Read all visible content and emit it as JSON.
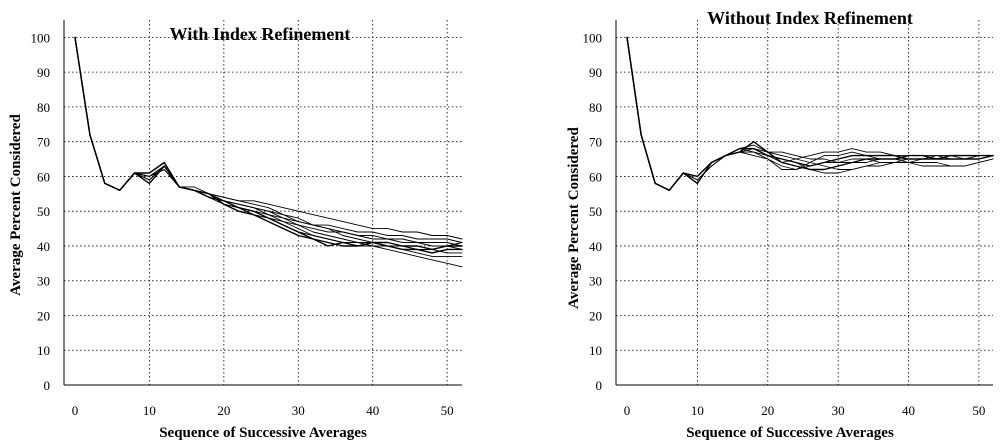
{
  "chart_data": [
    {
      "type": "line",
      "title": "With Index Refinement",
      "xlabel": "Sequence of Successive Averages",
      "ylabel": "Average Percent Considered",
      "xlim": [
        0,
        52
      ],
      "ylim": [
        0,
        105
      ],
      "x_ticks": [
        "0",
        "10",
        "20",
        "30",
        "40",
        "50"
      ],
      "y_ticks": [
        "0",
        "10",
        "20",
        "30",
        "40",
        "50",
        "60",
        "70",
        "80",
        "90",
        "100"
      ],
      "grid": true,
      "x": [
        0,
        2,
        4,
        6,
        8,
        10,
        12,
        14,
        16,
        18,
        20,
        22,
        24,
        26,
        28,
        30,
        32,
        34,
        36,
        38,
        40,
        42,
        44,
        46,
        48,
        50,
        52
      ],
      "series": [
        {
          "values": [
            100,
            72,
            58,
            56,
            61,
            58,
            63,
            57,
            56,
            55,
            52,
            50,
            49,
            47,
            45,
            43,
            42,
            40,
            41,
            40,
            41,
            40,
            39,
            39,
            38,
            39,
            39
          ]
        },
        {
          "values": [
            100,
            72,
            58,
            56,
            61,
            61,
            64,
            57,
            56,
            54,
            53,
            51,
            50,
            48,
            46,
            44,
            42,
            41,
            40,
            40,
            41,
            41,
            40,
            40,
            39,
            40,
            40
          ]
        },
        {
          "values": [
            100,
            72,
            58,
            56,
            61,
            60,
            62,
            57,
            56,
            55,
            52,
            51,
            49,
            48,
            47,
            45,
            43,
            42,
            41,
            40,
            40,
            39,
            38,
            37,
            36,
            35,
            34
          ]
        },
        {
          "values": [
            100,
            72,
            58,
            56,
            61,
            59,
            63,
            57,
            56,
            54,
            53,
            52,
            51,
            50,
            49,
            47,
            46,
            45,
            44,
            43,
            43,
            42,
            42,
            41,
            41,
            41,
            40
          ]
        },
        {
          "values": [
            100,
            72,
            58,
            56,
            61,
            60,
            63,
            57,
            57,
            55,
            54,
            53,
            52,
            51,
            49,
            48,
            46,
            45,
            43,
            42,
            41,
            40,
            40,
            39,
            39,
            40,
            41
          ]
        },
        {
          "values": [
            100,
            72,
            58,
            56,
            61,
            60,
            62,
            57,
            56,
            55,
            53,
            52,
            51,
            49,
            47,
            46,
            44,
            43,
            42,
            41,
            41,
            40,
            39,
            38,
            37,
            37,
            37
          ]
        },
        {
          "values": [
            100,
            72,
            58,
            56,
            61,
            59,
            63,
            57,
            56,
            54,
            52,
            51,
            50,
            49,
            48,
            46,
            45,
            44,
            44,
            43,
            42,
            42,
            41,
            41,
            40,
            40,
            39
          ]
        },
        {
          "values": [
            100,
            72,
            58,
            56,
            61,
            60,
            63,
            57,
            56,
            55,
            54,
            53,
            53,
            52,
            51,
            50,
            49,
            48,
            47,
            46,
            45,
            45,
            44,
            44,
            43,
            43,
            42
          ]
        },
        {
          "values": [
            100,
            72,
            58,
            56,
            61,
            60,
            62,
            57,
            56,
            55,
            53,
            51,
            49,
            48,
            46,
            44,
            43,
            42,
            41,
            41,
            40,
            40,
            40,
            39,
            39,
            38,
            38
          ]
        },
        {
          "values": [
            100,
            72,
            58,
            56,
            61,
            59,
            63,
            57,
            56,
            54,
            53,
            52,
            51,
            50,
            48,
            47,
            46,
            46,
            45,
            44,
            44,
            43,
            43,
            42,
            42,
            42,
            41
          ]
        }
      ]
    },
    {
      "type": "line",
      "title": "Without Index Refinement",
      "xlabel": "Sequence of Successive Averages",
      "ylabel": "Average Percent Considered",
      "xlim": [
        0,
        52
      ],
      "ylim": [
        0,
        105
      ],
      "x_ticks": [
        "0",
        "10",
        "20",
        "30",
        "40",
        "50"
      ],
      "y_ticks": [
        "0",
        "10",
        "20",
        "30",
        "40",
        "50",
        "60",
        "70",
        "80",
        "90",
        "100"
      ],
      "grid": true,
      "x": [
        0,
        2,
        4,
        6,
        8,
        10,
        12,
        14,
        16,
        18,
        20,
        22,
        24,
        26,
        28,
        30,
        32,
        34,
        36,
        38,
        40,
        42,
        44,
        46,
        48,
        50,
        52
      ],
      "series": [
        {
          "values": [
            100,
            72,
            58,
            56,
            61,
            58,
            64,
            66,
            67,
            70,
            67,
            64,
            63,
            62,
            62,
            63,
            64,
            65,
            65,
            65,
            66,
            66,
            65,
            65,
            65,
            65,
            66
          ]
        },
        {
          "values": [
            100,
            72,
            58,
            56,
            61,
            60,
            64,
            66,
            68,
            68,
            66,
            65,
            64,
            63,
            64,
            65,
            66,
            66,
            66,
            66,
            65,
            65,
            65,
            66,
            66,
            66,
            66
          ]
        },
        {
          "values": [
            100,
            72,
            58,
            56,
            61,
            60,
            64,
            66,
            67,
            66,
            65,
            62,
            62,
            64,
            66,
            66,
            67,
            66,
            65,
            65,
            64,
            64,
            64,
            63,
            63,
            64,
            65
          ]
        },
        {
          "values": [
            100,
            72,
            58,
            56,
            61,
            60,
            64,
            66,
            68,
            69,
            67,
            67,
            66,
            65,
            65,
            64,
            64,
            64,
            65,
            65,
            65,
            65,
            66,
            66,
            65,
            65,
            66
          ]
        },
        {
          "values": [
            100,
            72,
            58,
            56,
            61,
            59,
            63,
            66,
            67,
            68,
            66,
            64,
            65,
            66,
            67,
            67,
            68,
            67,
            67,
            66,
            66,
            66,
            66,
            65,
            65,
            66,
            66
          ]
        },
        {
          "values": [
            100,
            72,
            58,
            56,
            61,
            60,
            64,
            66,
            67,
            67,
            65,
            63,
            62,
            63,
            64,
            64,
            65,
            65,
            64,
            64,
            64,
            63,
            63,
            63,
            63,
            64,
            65
          ]
        },
        {
          "values": [
            100,
            72,
            58,
            56,
            61,
            60,
            64,
            66,
            68,
            67,
            66,
            65,
            64,
            62,
            61,
            61,
            62,
            63,
            64,
            64,
            65,
            65,
            65,
            65,
            65,
            66,
            66
          ]
        },
        {
          "values": [
            100,
            72,
            58,
            56,
            61,
            59,
            63,
            66,
            68,
            68,
            67,
            66,
            65,
            64,
            63,
            62,
            62,
            63,
            63,
            64,
            64,
            65,
            65,
            66,
            66,
            66,
            66
          ]
        }
      ]
    }
  ]
}
